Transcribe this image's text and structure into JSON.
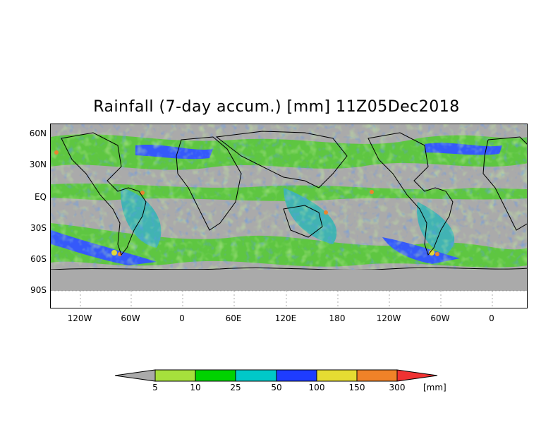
{
  "title": "Rainfall (7-day accum.) [mm] 11Z05Dec2018",
  "map": {
    "lat_labels": [
      "60N",
      "30N",
      "EQ",
      "30S",
      "60S",
      "90S"
    ],
    "lon_labels": [
      "120W",
      "60W",
      "0",
      "60E",
      "120E",
      "180",
      "120W",
      "60W",
      "0"
    ],
    "no_data_color": "#aaaaaa"
  },
  "colorbar": {
    "levels": [
      "5",
      "10",
      "25",
      "50",
      "100",
      "150",
      "300"
    ],
    "colors": [
      "#a6e03c",
      "#00d200",
      "#00c8c8",
      "#1e3cff",
      "#e6dc32",
      "#f08228",
      "#f03232"
    ],
    "below_color": "#aaaaaa",
    "unit": "[mm]"
  }
}
